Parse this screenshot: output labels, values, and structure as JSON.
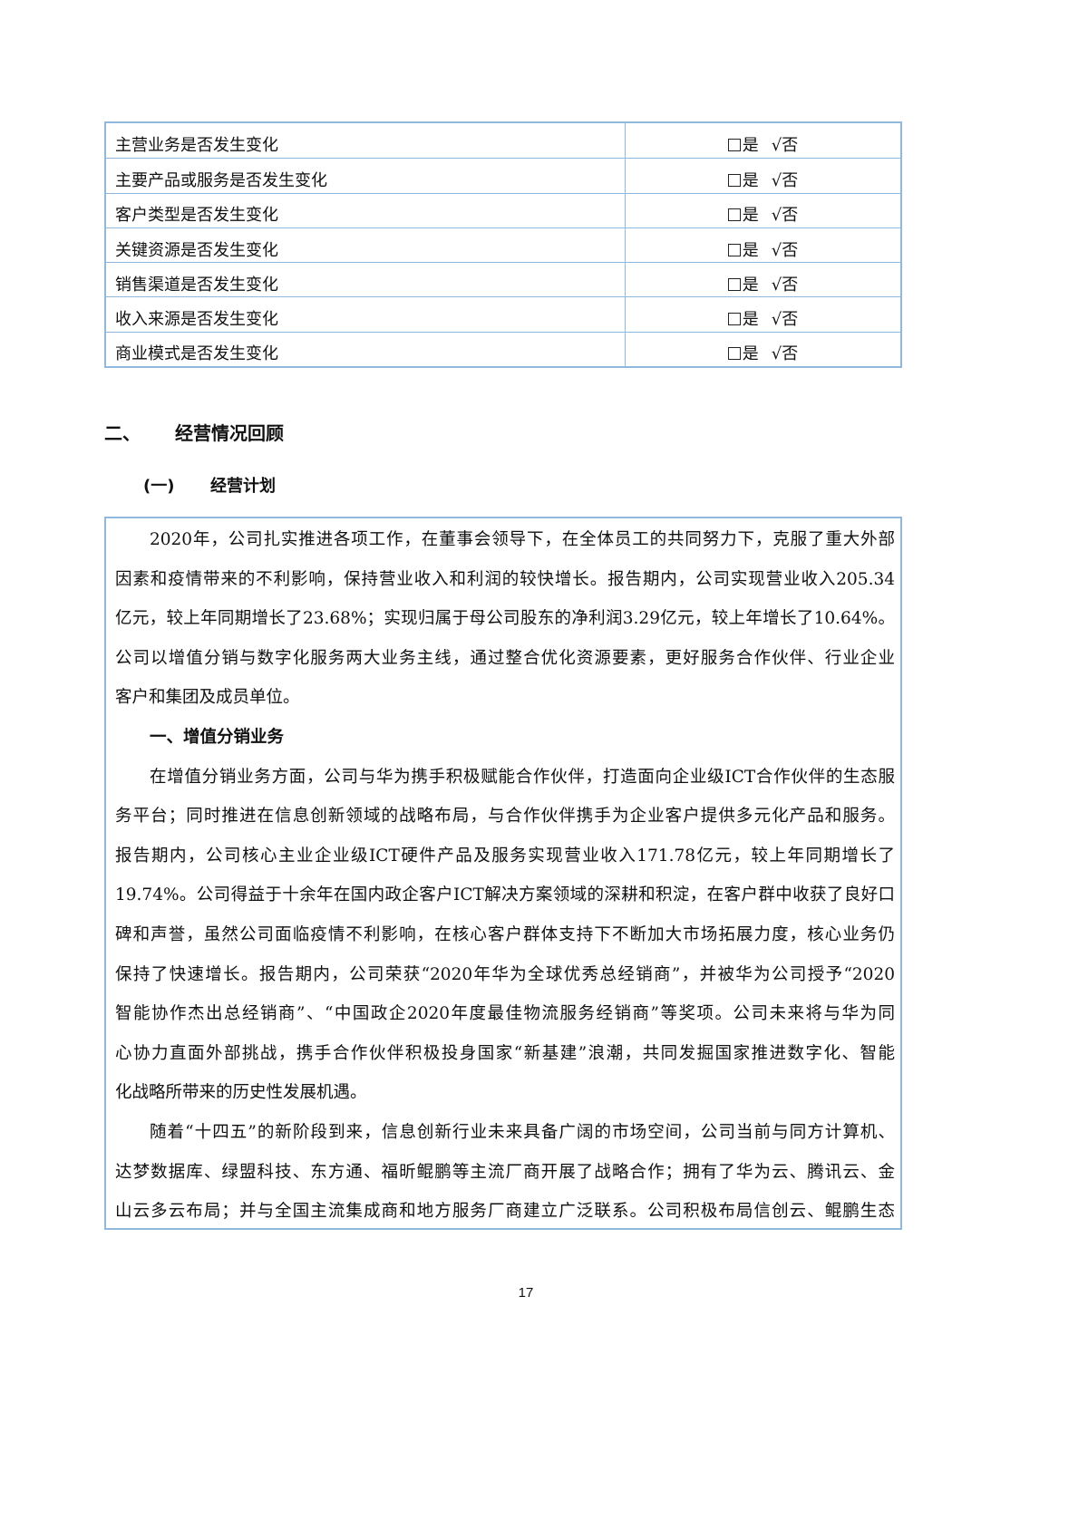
{
  "table": {
    "yes_label": "是",
    "no_label": "否",
    "rows": [
      {
        "label": "主营业务是否发生变化",
        "yes": false,
        "no": true
      },
      {
        "label": "主要产品或服务是否发生变化",
        "yes": false,
        "no": true
      },
      {
        "label": "客户类型是否发生变化",
        "yes": false,
        "no": true
      },
      {
        "label": "关键资源是否发生变化",
        "yes": false,
        "no": true
      },
      {
        "label": "销售渠道是否发生变化",
        "yes": false,
        "no": true
      },
      {
        "label": "收入来源是否发生变化",
        "yes": false,
        "no": true
      },
      {
        "label": "商业模式是否发生变化",
        "yes": false,
        "no": true
      }
    ]
  },
  "section": {
    "number": "二、",
    "title": "经营情况回顾"
  },
  "subsection": {
    "number": "(一)",
    "title": "经营计划"
  },
  "body_lines": [
    {
      "text": "2020年，公司扎实推进各项工作，在董事会领导下，在全体员工的共同努力下，克服了重大外部",
      "indent": true
    },
    {
      "text": "因素和疫情带来的不利影响，保持营业收入和利润的较快增长。报告期内，公司实现营业收入205.34"
    },
    {
      "text": "亿元，较上年同期增长了23.68%；实现归属于母公司股东的净利润3.29亿元，较上年增长了10.64%。"
    },
    {
      "text": "公司以增值分销与数字化服务两大业务主线，通过整合优化资源要素，更好服务合作伙伴、行业企业"
    },
    {
      "text": "客户和集团及成员单位。",
      "last": true
    },
    {
      "text": "一、增值分销业务",
      "indent": true,
      "last": true,
      "bold": true
    },
    {
      "text": "在增值分销业务方面，公司与华为携手积极赋能合作伙伴，打造面向企业级ICT合作伙伴的生态服",
      "indent": true
    },
    {
      "text": "务平台；同时推进在信息创新领域的战略布局，与合作伙伴携手为企业客户提供多元化产品和服务。"
    },
    {
      "text": "报告期内，公司核心主业企业级ICT硬件产品及服务实现营业收入171.78亿元，较上年同期增长了"
    },
    {
      "text": "19.74%。公司得益于十余年在国内政企客户ICT解决方案领域的深耕和积淀，在客户群中收获了良好口"
    },
    {
      "text": "碑和声誉，虽然公司面临疫情不利影响，在核心客户群体支持下不断加大市场拓展力度，核心业务仍"
    },
    {
      "text": "保持了快速增长。报告期内，公司荣获“2020年华为全球优秀总经销商”，并被华为公司授予“2020"
    },
    {
      "text": "智能协作杰出总经销商”、“中国政企2020年度最佳物流服务经销商”等奖项。公司未来将与华为同"
    },
    {
      "text": "心协力直面外部挑战，携手合作伙伴积极投身国家“新基建”浪潮，共同发掘国家推进数字化、智能"
    },
    {
      "text": "化战略所带来的历史性发展机遇。",
      "last": true
    },
    {
      "text": "随着“十四五”的新阶段到来，信息创新行业未来具备广阔的市场空间，公司当前与同方计算机、",
      "indent": true
    },
    {
      "text": "达梦数据库、绿盟科技、东方通、福昕鲲鹏等主流厂商开展了战略合作；拥有了华为云、腾讯云、金"
    },
    {
      "text": "山云多云布局；并与全国主流集成商和地方服务厂商建立广泛联系。公司积极布局信创云、鲲鹏生态"
    }
  ],
  "page_number": "17",
  "colors": {
    "border": "#8fb8de"
  }
}
